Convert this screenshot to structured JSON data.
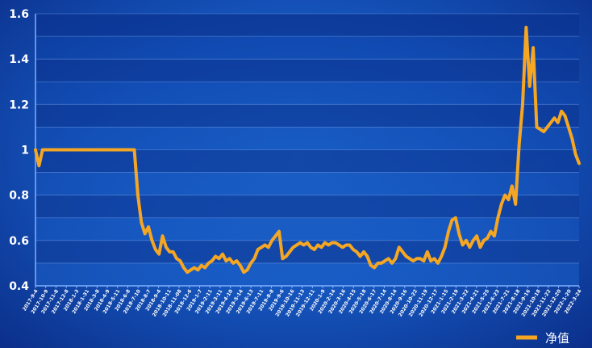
{
  "chart_data": {
    "type": "line",
    "title": "",
    "xlabel": "",
    "ylabel": "",
    "ylim": [
      0.4,
      1.6
    ],
    "yticks": [
      0.4,
      0.6,
      0.8,
      1,
      1.2,
      1.4,
      1.6
    ],
    "ytick_labels": [
      "0.4",
      "0.6",
      "0.8",
      "1",
      "1.2",
      "1.4",
      "1.6"
    ],
    "x_tick_labels": [
      "2017-9-4",
      "2017-10-9",
      "2017-11-8",
      "2017-12-8",
      "2018-1-3",
      "2018-1-31",
      "2018-3-8",
      "2018-4-9",
      "2018-5-11",
      "2018-6-8",
      "2018-7-10",
      "2018-8-7",
      "2018-9-4",
      "2018-10-11",
      "2018-11-08",
      "2018-12-6",
      "2019-1-7",
      "2019-2-11",
      "2019-3-11",
      "2019-4-10",
      "2019-5-14",
      "2019-6-13",
      "2019-7-11",
      "2019-8-8",
      "2019-9-6",
      "2019-10-16",
      "2019-11-13",
      "2019-12-11",
      "2020-1-9",
      "2020-2-14",
      "2020-3-16",
      "2020-4-15",
      "2020-5-18",
      "2020-6-17",
      "2020-7-14",
      "2020-8-14",
      "2020-9-16",
      "2020-10-22",
      "2020-11-19",
      "2020-12-17",
      "2021-1-15",
      "2021-2-19",
      "2021-3-22",
      "2021-4-21",
      "2021-5-25",
      "2021-6-23",
      "2021-7-21",
      "2021-8-18",
      "2021-9-16",
      "2021-10-18",
      "2021-11-22",
      "2021-12-20",
      "2022-1-20",
      "2022-3-24"
    ],
    "grid": true,
    "legend_position": "bottom-right",
    "series": [
      {
        "name": "净值",
        "color": "#f5a623",
        "values": [
          1.0,
          0.93,
          1.0,
          1.0,
          1.0,
          1.0,
          1.0,
          1.0,
          1.0,
          1.0,
          1.0,
          1.0,
          1.0,
          1.0,
          1.0,
          1.0,
          1.0,
          1.0,
          1.0,
          1.0,
          1.0,
          1.0,
          1.0,
          1.0,
          1.0,
          1.0,
          1.0,
          1.0,
          1.0,
          0.8,
          0.68,
          0.63,
          0.66,
          0.6,
          0.56,
          0.54,
          0.62,
          0.57,
          0.55,
          0.55,
          0.52,
          0.51,
          0.48,
          0.46,
          0.47,
          0.48,
          0.47,
          0.49,
          0.48,
          0.5,
          0.51,
          0.53,
          0.52,
          0.54,
          0.51,
          0.52,
          0.5,
          0.51,
          0.49,
          0.46,
          0.47,
          0.5,
          0.52,
          0.56,
          0.57,
          0.58,
          0.57,
          0.6,
          0.62,
          0.64,
          0.52,
          0.53,
          0.55,
          0.57,
          0.58,
          0.59,
          0.58,
          0.59,
          0.57,
          0.56,
          0.58,
          0.57,
          0.59,
          0.58,
          0.59,
          0.59,
          0.58,
          0.57,
          0.58,
          0.58,
          0.56,
          0.55,
          0.53,
          0.55,
          0.53,
          0.49,
          0.48,
          0.5,
          0.5,
          0.51,
          0.52,
          0.5,
          0.52,
          0.57,
          0.55,
          0.53,
          0.52,
          0.51,
          0.52,
          0.52,
          0.51,
          0.55,
          0.51,
          0.52,
          0.5,
          0.53,
          0.57,
          0.64,
          0.69,
          0.7,
          0.63,
          0.58,
          0.6,
          0.57,
          0.6,
          0.62,
          0.57,
          0.6,
          0.61,
          0.64,
          0.62,
          0.7,
          0.76,
          0.8,
          0.78,
          0.84,
          0.76,
          1.02,
          1.2,
          1.54,
          1.28,
          1.45,
          1.1,
          1.09,
          1.08,
          1.1,
          1.12,
          1.14,
          1.12,
          1.17,
          1.15,
          1.1,
          1.05,
          0.98,
          0.94
        ]
      }
    ]
  }
}
